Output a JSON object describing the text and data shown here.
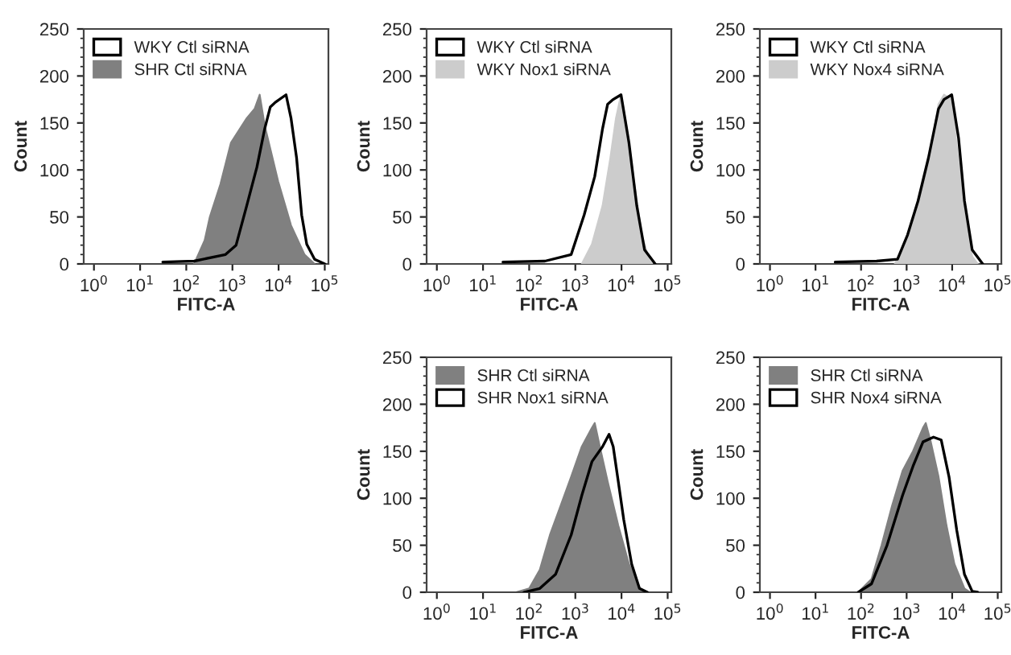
{
  "chart_data": [
    {
      "type": "area",
      "xlabel": "FITC-A",
      "ylabel": "Count",
      "log": "x",
      "legend": "top left",
      "xlim": [
        0.6,
        120000
      ],
      "ylim": [
        0,
        250
      ],
      "yticks": [
        0,
        50,
        100,
        150,
        200,
        250
      ],
      "xticks": [
        {
          "value": 1,
          "label": "10$^{0}$"
        },
        {
          "value": 10,
          "label": "10$^{1}$"
        },
        {
          "value": 100,
          "label": "10$^{2}$"
        },
        {
          "value": 1000,
          "label": "10$^{3}$"
        },
        {
          "value": 10000,
          "label": "10$^{4}$"
        },
        {
          "value": 100000,
          "label": "10$^{5}$"
        }
      ],
      "series": [
        {
          "name": "WKY Ctl siRNA",
          "type": "line",
          "color": "#000000",
          "x": [
            31,
            148,
            708,
            1200,
            2040,
            3390,
            5010,
            6610,
            8510,
            14500,
            18600,
            24500,
            31600,
            40700,
            60300,
            100000
          ],
          "values": [
            2,
            3,
            10,
            20,
            62,
            103,
            144,
            167,
            172,
            180,
            155,
            113,
            52,
            21,
            5,
            0
          ]
        },
        {
          "name": "SHR Ctl siRNA",
          "color": "#808080",
          "x": [
            148,
            250,
            324,
            550,
            930,
            2040,
            3020,
            3890,
            5010,
            9770,
            18600,
            36300,
            60300
          ],
          "values": [
            0,
            25,
            50,
            85,
            129,
            155,
            165,
            180,
            147,
            88,
            41,
            10,
            0
          ]
        }
      ]
    },
    {
      "type": "area",
      "xlabel": "FITC-A",
      "ylabel": "Count",
      "log": "x",
      "legend": "top left",
      "xlim": [
        0.6,
        120000
      ],
      "ylim": [
        0,
        250
      ],
      "yticks": [
        0,
        50,
        100,
        150,
        200,
        250
      ],
      "xticks": [
        {
          "value": 1,
          "label": "10$^{0}$"
        },
        {
          "value": 10,
          "label": "10$^{1}$"
        },
        {
          "value": 100,
          "label": "10$^{2}$"
        },
        {
          "value": 1000,
          "label": "10$^{3}$"
        },
        {
          "value": 10000,
          "label": "10$^{4}$"
        },
        {
          "value": 100000,
          "label": "10$^{5}$"
        }
      ],
      "series": [
        {
          "name": "WKY Ctl siRNA",
          "type": "line",
          "color": "#000000",
          "x": [
            27,
            219,
            813,
            1550,
            2630,
            3890,
            5010,
            6610,
            9770,
            14500,
            21400,
            31600,
            53700
          ],
          "values": [
            2,
            3,
            10,
            52,
            93,
            144,
            170,
            175,
            180,
            129,
            62,
            15,
            0
          ]
        },
        {
          "name": "WKY Nox1 siRNA",
          "color": "#cccccc",
          "x": [
            1380,
            2290,
            3890,
            5750,
            7590,
            9770,
            12600,
            18600,
            27500,
            40700,
            46800
          ],
          "values": [
            0,
            21,
            62,
            113,
            155,
            180,
            149,
            88,
            31,
            3,
            0
          ]
        }
      ]
    },
    {
      "type": "area",
      "xlabel": "FITC-A",
      "ylabel": "Count",
      "log": "x",
      "legend": "top left",
      "xlim": [
        0.6,
        120000
      ],
      "ylim": [
        0,
        250
      ],
      "yticks": [
        0,
        50,
        100,
        150,
        200,
        250
      ],
      "xticks": [
        {
          "value": 1,
          "label": "10$^{0}$"
        },
        {
          "value": 10,
          "label": "10$^{1}$"
        },
        {
          "value": 100,
          "label": "10$^{2}$"
        },
        {
          "value": 1000,
          "label": "10$^{3}$"
        },
        {
          "value": 10000,
          "label": "10$^{4}$"
        },
        {
          "value": 100000,
          "label": "10$^{5}$"
        }
      ],
      "series": [
        {
          "name": "WKY Ctl siRNA",
          "type": "line",
          "color": "#000000",
          "x": [
            27,
            219,
            631,
            1050,
            1780,
            3020,
            5010,
            6610,
            9770,
            13800,
            18600,
            27500,
            46800
          ],
          "values": [
            2,
            3,
            5,
            31,
            67,
            113,
            165,
            175,
            180,
            134,
            67,
            15,
            0
          ]
        },
        {
          "name": "WKY Nox4 siRNA",
          "color": "#cccccc",
          "x": [
            550,
            1050,
            1780,
            3020,
            5010,
            6610,
            9770,
            12600,
            18600,
            27500,
            36300
          ],
          "values": [
            0,
            26,
            62,
            108,
            170,
            180,
            175,
            124,
            52,
            8,
            0
          ]
        }
      ]
    },
    {
      "type": "area",
      "xlabel": "FITC-A",
      "ylabel": "Count",
      "log": "x",
      "legend": "top left",
      "xlim": [
        0.6,
        120000
      ],
      "ylim": [
        0,
        250
      ],
      "yticks": [
        0,
        50,
        100,
        150,
        200,
        250
      ],
      "xticks": [
        {
          "value": 1,
          "label": "10$^{0}$"
        },
        {
          "value": 10,
          "label": "10$^{1}$"
        },
        {
          "value": 100,
          "label": "10$^{2}$"
        },
        {
          "value": 1000,
          "label": "10$^{3}$"
        },
        {
          "value": 10000,
          "label": "10$^{4}$"
        },
        {
          "value": 100000,
          "label": "10$^{5}$"
        }
      ],
      "series": [
        {
          "name": "SHR Ctl siRNA",
          "color": "#808080",
          "x": [
            52,
            100,
            170,
            282,
            479,
            813,
            1380,
            2290,
            2630,
            3390,
            5010,
            8510,
            14500,
            24500,
            31600
          ],
          "values": [
            0,
            4,
            24,
            61,
            92,
            123,
            155,
            175,
            180,
            155,
            118,
            71,
            30,
            4,
            0
          ]
        },
        {
          "name": "SHR Nox1 siRNA",
          "type": "line",
          "color": "#000000",
          "x": [
            77,
            170,
            372,
            813,
            1380,
            2290,
            3890,
            5370,
            6610,
            8510,
            11200,
            16600,
            24500,
            36300
          ],
          "values": [
            0,
            4,
            19,
            61,
            103,
            139,
            155,
            168,
            155,
            118,
            77,
            30,
            4,
            0
          ]
        }
      ]
    },
    {
      "type": "area",
      "xlabel": "FITC-A",
      "ylabel": "Count",
      "log": "x",
      "legend": "top left",
      "xlim": [
        0.6,
        120000
      ],
      "ylim": [
        0,
        250
      ],
      "yticks": [
        0,
        50,
        100,
        150,
        200,
        250
      ],
      "xticks": [
        {
          "value": 1,
          "label": "10$^{0}$"
        },
        {
          "value": 10,
          "label": "10$^{1}$"
        },
        {
          "value": 100,
          "label": "10$^{2}$"
        },
        {
          "value": 1000,
          "label": "10$^{3}$"
        },
        {
          "value": 10000,
          "label": "10$^{4}$"
        },
        {
          "value": 100000,
          "label": "10$^{5}$"
        }
      ],
      "series": [
        {
          "name": "SHR Ctl siRNA",
          "color": "#808080",
          "x": [
            87,
            170,
            282,
            479,
            813,
            1380,
            2290,
            2630,
            3390,
            5010,
            7500,
            11200,
            18600,
            24500
          ],
          "values": [
            0,
            14,
            50,
            92,
            129,
            150,
            175,
            180,
            160,
            123,
            71,
            30,
            4,
            0
          ]
        },
        {
          "name": "SHR Nox4 siRNA",
          "type": "line",
          "color": "#000000",
          "x": [
            87,
            170,
            372,
            813,
            1380,
            2290,
            3890,
            5750,
            8510,
            12600,
            18600,
            27500,
            36300
          ],
          "values": [
            0,
            9,
            50,
            103,
            134,
            160,
            165,
            162,
            123,
            66,
            19,
            1,
            0
          ]
        }
      ]
    }
  ]
}
